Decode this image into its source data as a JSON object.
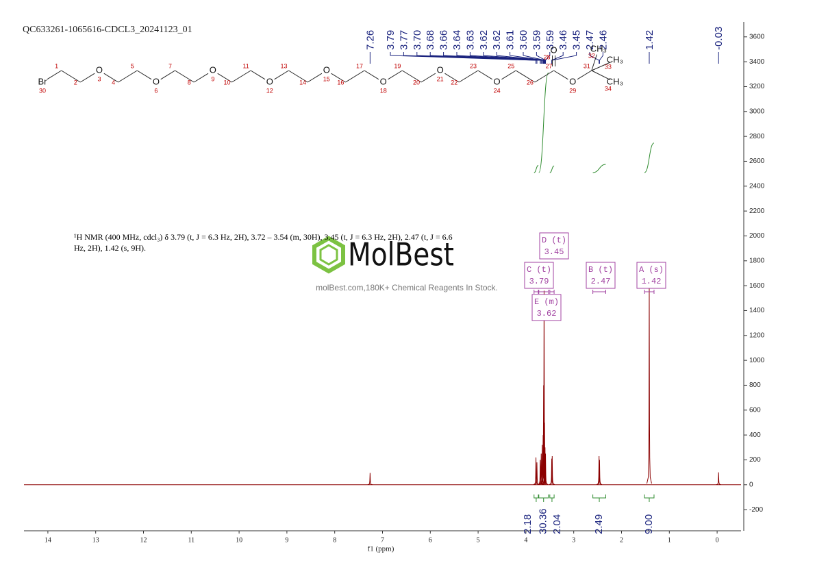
{
  "chart_data": {
    "type": "nmr",
    "title": "QC633261-1065616-CDCL3_20241123_01",
    "x_label": "f1 (ppm)",
    "xlim": [
      14.5,
      -0.5
    ],
    "xticks": [
      14,
      13,
      12,
      11,
      10,
      9,
      8,
      7,
      6,
      5,
      4,
      3,
      2,
      1,
      0
    ],
    "ylim": [
      -370,
      3720
    ],
    "yticks": [
      -200,
      0,
      200,
      400,
      600,
      800,
      1000,
      1200,
      1400,
      1600,
      1800,
      2000,
      2200,
      2400,
      2600,
      2800,
      3000,
      3200,
      3400,
      3600
    ],
    "color": "#8b0000",
    "peaks": [
      {
        "shift": 7.26,
        "height": 95
      },
      {
        "shift": 3.79,
        "height": 220
      },
      {
        "shift": 3.77,
        "height": 180
      },
      {
        "shift": 3.7,
        "height": 200
      },
      {
        "shift": 3.68,
        "height": 250
      },
      {
        "shift": 3.66,
        "height": 320
      },
      {
        "shift": 3.64,
        "height": 400
      },
      {
        "shift": 3.63,
        "height": 800
      },
      {
        "shift": 3.62,
        "height": 1560
      },
      {
        "shift": 3.61,
        "height": 500
      },
      {
        "shift": 3.6,
        "height": 300
      },
      {
        "shift": 3.59,
        "height": 250
      },
      {
        "shift": 3.46,
        "height": 210
      },
      {
        "shift": 3.45,
        "height": 230
      },
      {
        "shift": 2.47,
        "height": 230
      },
      {
        "shift": 2.46,
        "height": 200
      },
      {
        "shift": 1.42,
        "height": 1590
      },
      {
        "shift": -0.03,
        "height": 100
      }
    ],
    "peak_labels": [
      7.26,
      3.79,
      3.77,
      {
        "value": 3.7,
        "label": "3.70"
      },
      3.68,
      3.66,
      3.64,
      3.63,
      3.62,
      3.62,
      3.61,
      {
        "value": 3.6,
        "label": "3.60"
      },
      3.59,
      3.59,
      3.46,
      3.45,
      2.47,
      2.46,
      1.42,
      -0.03
    ],
    "peak_label_color": "#1a237e",
    "integrals": [
      {
        "value": 2.18,
        "range": [
          3.83,
          3.74
        ]
      },
      {
        "value": 30.36,
        "range": [
          3.73,
          3.53
        ]
      },
      {
        "value": 2.04,
        "range": [
          3.5,
          3.41
        ]
      },
      {
        "value": 2.49,
        "range": [
          2.6,
          2.33
        ]
      },
      {
        "value": {
          "value": 9,
          "label": "9.00"
        },
        "range": [
          1.52,
          1.32
        ]
      }
    ],
    "integral_color": "#2e8b2e",
    "multiplets": [
      {
        "label": "A (s)",
        "shift": 1.42,
        "range": [
          1.52,
          1.32
        ]
      },
      {
        "label": "B (t)",
        "shift": 2.47,
        "range": [
          2.6,
          2.33
        ]
      },
      {
        "label": "C (t)",
        "shift": 3.79,
        "range": [
          3.83,
          3.74
        ]
      },
      {
        "label": "D (t)",
        "shift": 3.45,
        "range": [
          3.5,
          3.41
        ]
      },
      {
        "label": "E (m)",
        "shift": 3.62,
        "range": [
          3.73,
          3.53
        ]
      }
    ],
    "multiplet_color": "#a040a0",
    "description": "¹H NMR (400 MHz, cdcl₃) δ 3.79 (t, J = 6.3 Hz, 2H), 3.72 – 3.54 (m, 30H), 3.45 (t, J = 6.3 Hz, 2H), 2.47 (t, J = 6.6 Hz, 2H), 1.42 (s, 9H).",
    "watermark": {
      "brand": "MolBest",
      "tagline": "molBest.com,180K+ Chemical Reagents In Stock."
    },
    "structure": {
      "atoms": [
        {
          "number": 30,
          "symbol": "Br"
        },
        {
          "number": 1
        },
        {
          "number": 2
        },
        {
          "number": 3,
          "symbol": "O"
        },
        {
          "number": 4
        },
        {
          "number": 5
        },
        {
          "number": 6,
          "symbol": "O"
        },
        {
          "number": 7
        },
        {
          "number": 8
        },
        {
          "number": 9,
          "symbol": "O"
        },
        {
          "number": 10
        },
        {
          "number": 11
        },
        {
          "number": 12,
          "symbol": "O"
        },
        {
          "number": 13
        },
        {
          "number": 14
        },
        {
          "number": 15,
          "symbol": "O"
        },
        {
          "number": 16
        },
        {
          "number": 17
        },
        {
          "number": 18,
          "symbol": "O"
        },
        {
          "number": 19
        },
        {
          "number": 20
        },
        {
          "number": 21,
          "symbol": "O"
        },
        {
          "number": 22
        },
        {
          "number": 23
        },
        {
          "number": 24,
          "symbol": "O"
        },
        {
          "number": 25
        },
        {
          "number": 26
        },
        {
          "number": 27
        },
        {
          "number": 29,
          "symbol": "O"
        },
        {
          "number": 31
        },
        {
          "number": 28,
          "symbol": "O"
        },
        {
          "number": 32,
          "symbol": "CH₃"
        },
        {
          "number": 33,
          "symbol": "CH₃"
        },
        {
          "number": 34,
          "symbol": "CH₃"
        }
      ]
    }
  }
}
